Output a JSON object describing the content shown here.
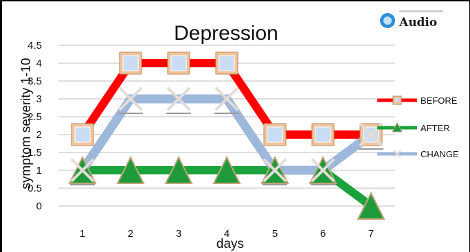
{
  "chart_data": {
    "type": "line",
    "title": "Depression",
    "xlabel": "days",
    "ylabel": "symptom severity 1-10",
    "categories": [
      "1",
      "2",
      "3",
      "4",
      "5",
      "6",
      "7"
    ],
    "yticks": [
      "0",
      "0.5",
      "1",
      "1.5",
      "2",
      "2.5",
      "3",
      "3.5",
      "4",
      "4.5"
    ],
    "ylim": [
      0,
      4.5
    ],
    "grid": true,
    "legend_position": "right",
    "series": [
      {
        "name": "BEFORE",
        "values": [
          2,
          4,
          4,
          4,
          2,
          2,
          2
        ],
        "color": "#ff0000",
        "marker": "square"
      },
      {
        "name": "AFTER",
        "values": [
          1,
          1,
          1,
          1,
          1,
          1,
          0
        ],
        "color": "#1aa33a",
        "marker": "triangle"
      },
      {
        "name": "CHANGE",
        "values": [
          1,
          3,
          3,
          3,
          1,
          1,
          2
        ],
        "color": "#9db8db",
        "marker": "x"
      }
    ]
  },
  "logo": {
    "text": "Audio",
    "icon": "audio-logo-icon"
  }
}
